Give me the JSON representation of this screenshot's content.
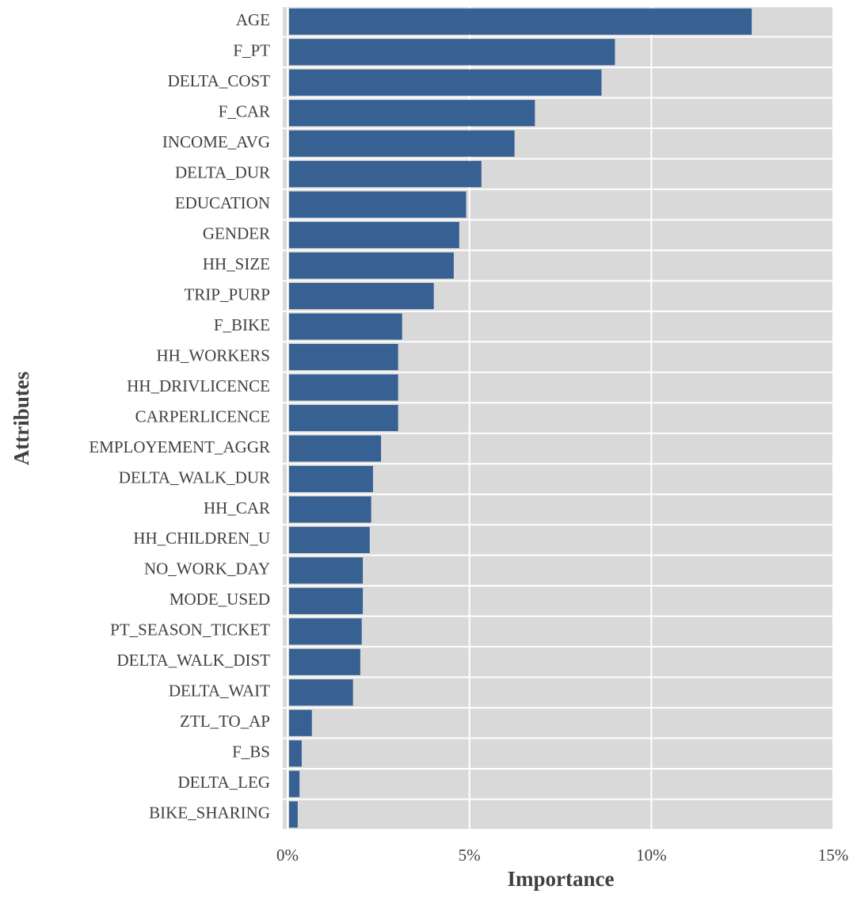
{
  "chart_data": {
    "type": "bar",
    "orientation": "horizontal",
    "x_label": "Importance",
    "y_label": "Attributes",
    "categories": [
      "AGE",
      "F_PT",
      "DELTA_COST",
      "F_CAR",
      "INCOME_AVG",
      "DELTA_DUR",
      "EDUCATION",
      "GENDER",
      "HH_SIZE",
      "TRIP_PURP",
      "F_BIKE",
      "HH_WORKERS",
      "HH_DRIVLICENCE",
      "CARPERLICENCE",
      "EMPLOYEMENT_AGGR",
      "DELTA_WALK_DUR",
      "HH_CAR",
      "HH_CHILDREN_U",
      "NO_WORK_DAY",
      "MODE_USED",
      "PT_SEASON_TICKET",
      "DELTA_WALK_DIST",
      "DELTA_WAIT",
      "ZTL_TO_AP",
      "F_BS",
      "DELTA_LEG",
      "BIKE_SHARING"
    ],
    "values": [
      12.76,
      9.0,
      8.63,
      6.8,
      6.24,
      5.33,
      4.91,
      4.72,
      4.57,
      4.02,
      3.15,
      3.04,
      3.04,
      3.04,
      2.57,
      2.35,
      2.3,
      2.26,
      2.07,
      2.07,
      2.04,
      2.0,
      1.8,
      0.67,
      0.39,
      0.33,
      0.28
    ],
    "color": "#386193",
    "xlim": [
      0,
      15
    ],
    "xticks": [
      {
        "value": 0,
        "label": "0%"
      },
      {
        "value": 5,
        "label": "5%"
      },
      {
        "value": 10,
        "label": "10%"
      },
      {
        "value": 15,
        "label": "15%"
      }
    ],
    "grid": true
  }
}
